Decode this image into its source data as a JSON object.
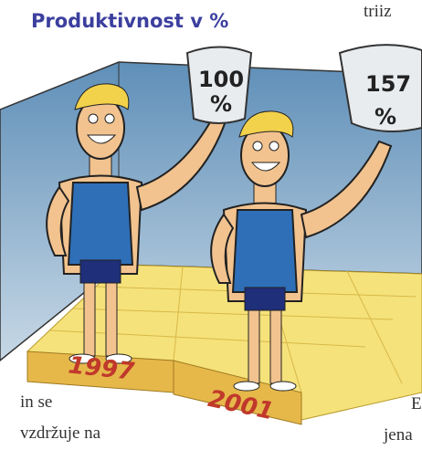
{
  "header": {
    "title": "Produktivnost v %"
  },
  "panels": [
    {
      "year": "1997",
      "value": "100",
      "unit": "%"
    },
    {
      "year": "2001",
      "value": "157",
      "unit": "%"
    }
  ],
  "text_fragments": [
    "triiz",
    "in se",
    "vzdržuje na",
    "E",
    "jena"
  ]
}
